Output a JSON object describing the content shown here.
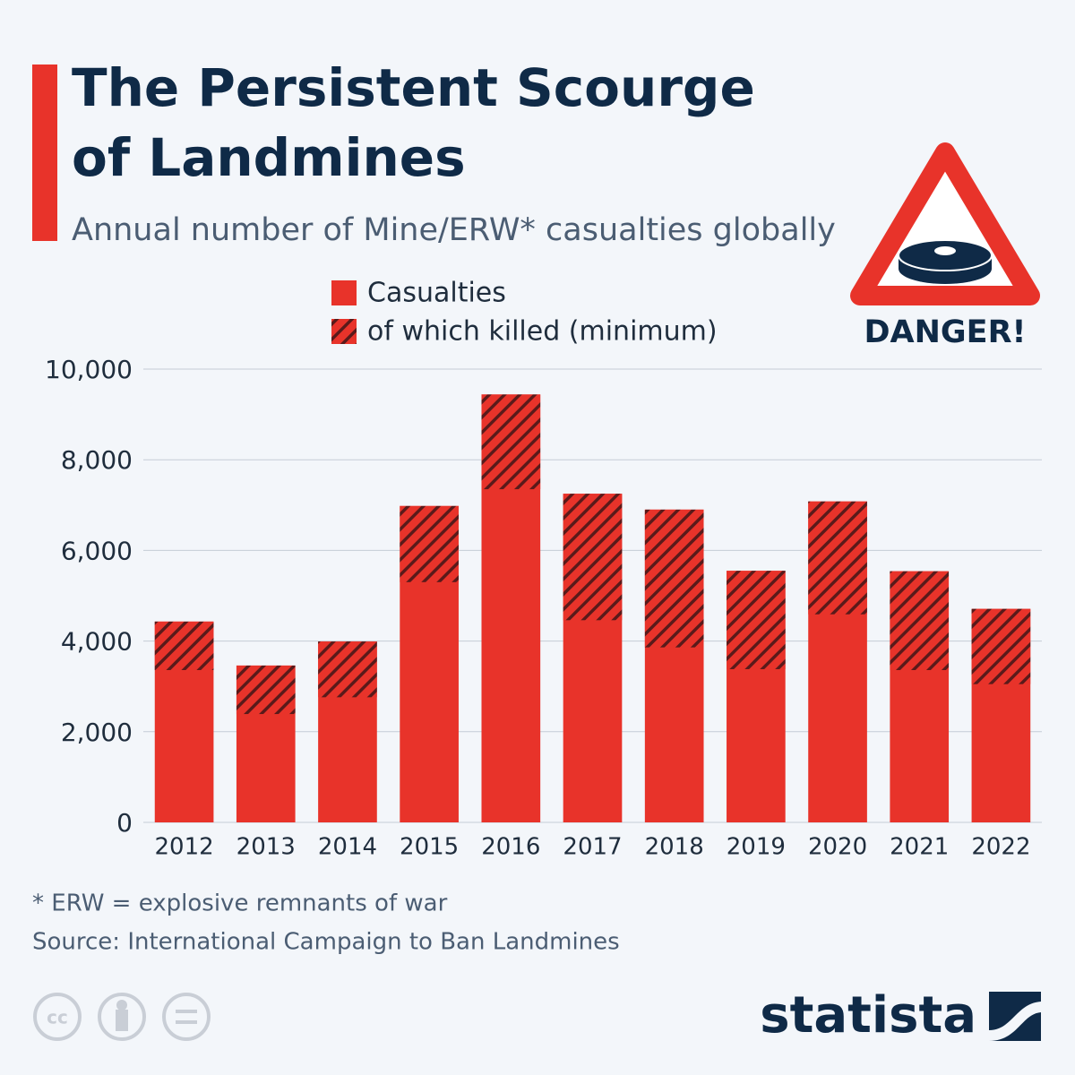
{
  "chart_data": {
    "type": "bar",
    "title": "The Persistent Scourge of Landmines",
    "subtitle": "Annual number of Mine/ERW* casualties globally",
    "categories": [
      "2012",
      "2013",
      "2014",
      "2015",
      "2016",
      "2017",
      "2018",
      "2019",
      "2020",
      "2021",
      "2022"
    ],
    "series": [
      {
        "name": "Casualties",
        "color": "#e8332a",
        "values": [
          4430,
          3460,
          3990,
          6980,
          9440,
          7250,
          6900,
          5550,
          7080,
          5540,
          4710
        ]
      },
      {
        "name": "of which killed (minimum)",
        "color": "#e8332a",
        "hatch": true,
        "values": [
          1070,
          1070,
          1230,
          1680,
          2090,
          2790,
          3040,
          2170,
          2490,
          2180,
          1660
        ]
      }
    ],
    "ylim": [
      0,
      10000
    ],
    "yticks": [
      0,
      {
        "value": 2000,
        "label": "2,000"
      },
      {
        "value": 4000,
        "label": "4,000"
      },
      {
        "value": 6000,
        "label": "6,000"
      },
      {
        "value": 8000,
        "label": "8,000"
      },
      {
        "value": 10000,
        "label": "10,000"
      }
    ],
    "grid": true,
    "annotation": "DANGER!",
    "footnote": "* ERW = explosive remnants of war",
    "source": "Source: International Campaign to Ban Landmines",
    "brand": "statista"
  }
}
